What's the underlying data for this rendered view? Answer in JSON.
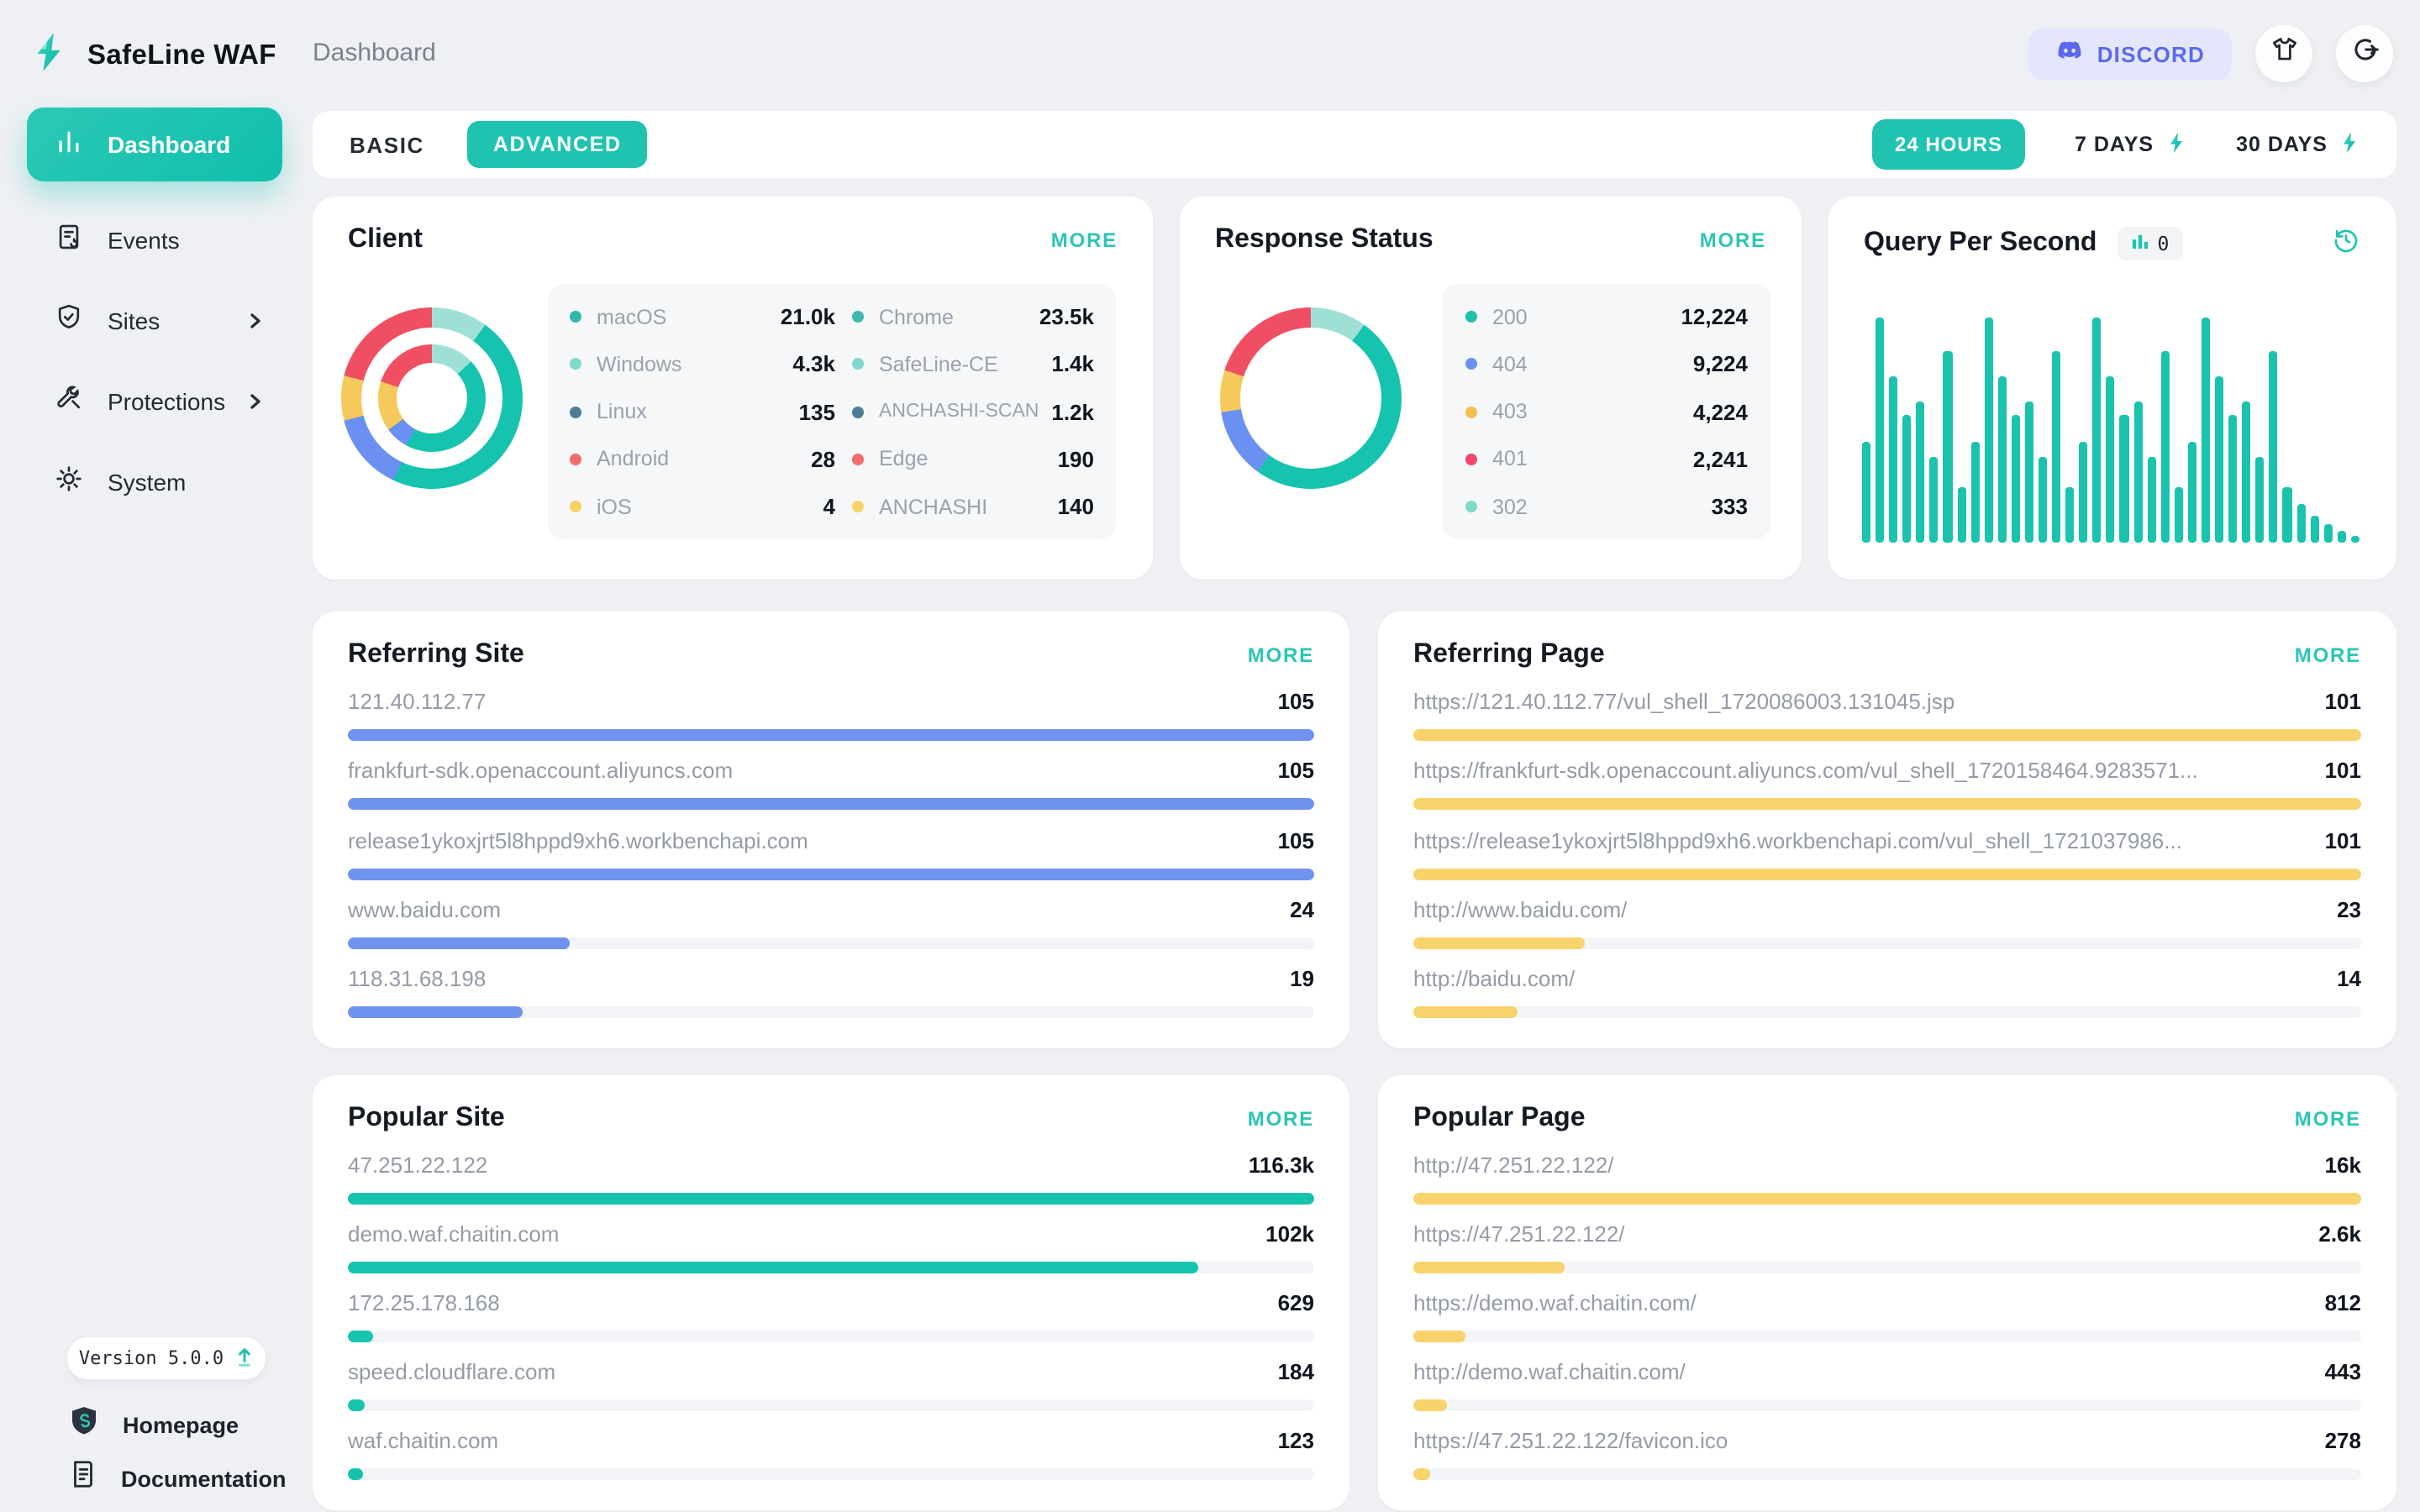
{
  "app": {
    "brand": "SafeLine WAF",
    "breadcrumb": "Dashboard"
  },
  "topbar": {
    "discord_label": "DISCORD",
    "accent_discord": "#5a68f2",
    "icons": [
      "discord-icon",
      "tshirt-theme-icon",
      "logout-icon"
    ]
  },
  "sidebar": {
    "items": [
      {
        "label": "Dashboard",
        "icon": "bar-chart-icon",
        "active": true,
        "has_children": false
      },
      {
        "label": "Events",
        "icon": "events-document-icon",
        "active": false,
        "has_children": false
      },
      {
        "label": "Sites",
        "icon": "shield-check-icon",
        "active": false,
        "has_children": true
      },
      {
        "label": "Protections",
        "icon": "tools-icon",
        "active": false,
        "has_children": true
      },
      {
        "label": "System",
        "icon": "gear-icon",
        "active": false,
        "has_children": false
      }
    ],
    "version": "Version 5.0.0",
    "footer_links": [
      {
        "label": "Homepage",
        "icon": "safeline-shield-icon"
      },
      {
        "label": "Documentation",
        "icon": "document-icon"
      }
    ]
  },
  "toolbar": {
    "modes": [
      {
        "label": "BASIC",
        "active": false
      },
      {
        "label": "ADVANCED",
        "active": true
      }
    ],
    "ranges": [
      {
        "label": "24 HOURS",
        "active": true,
        "pro": false
      },
      {
        "label": "7 DAYS",
        "active": false,
        "pro": true
      },
      {
        "label": "30 DAYS",
        "active": false,
        "pro": true
      }
    ],
    "accent": "#1fc3b0"
  },
  "cards": {
    "client": {
      "title": "Client",
      "more": "MORE",
      "legend_left": [
        {
          "label": "macOS",
          "value": "21.0k",
          "color": "#2fb7ab"
        },
        {
          "label": "Windows",
          "value": "4.3k",
          "color": "#7fd9cd"
        },
        {
          "label": "Linux",
          "value": "135",
          "color": "#4d7d99"
        },
        {
          "label": "Android",
          "value": "28",
          "color": "#f26d6d"
        },
        {
          "label": "iOS",
          "value": "4",
          "color": "#f5d263"
        }
      ],
      "legend_right": [
        {
          "label": "Chrome",
          "value": "23.5k",
          "color": "#3fb9b0"
        },
        {
          "label": "SafeLine-CE",
          "value": "1.4k",
          "color": "#7fd9cd"
        },
        {
          "label": "ANCHASHI-SCAN",
          "value": "1.2k",
          "color": "#4d7d99"
        },
        {
          "label": "Edge",
          "value": "190",
          "color": "#f26d6d"
        },
        {
          "label": "ANCHASHI",
          "value": "140",
          "color": "#f5d263"
        }
      ]
    },
    "response_status": {
      "title": "Response Status",
      "more": "MORE",
      "legend": [
        {
          "label": "200",
          "value": "12,224",
          "color": "#1ec0ab"
        },
        {
          "label": "404",
          "value": "9,224",
          "color": "#6a90f2"
        },
        {
          "label": "403",
          "value": "4,224",
          "color": "#f6bf51"
        },
        {
          "label": "401",
          "value": "2,241",
          "color": "#f2476a"
        },
        {
          "label": "302",
          "value": "333",
          "color": "#7fd9c8"
        }
      ]
    },
    "qps": {
      "title": "Query Per Second",
      "badge_value": "0",
      "history_icon": "history-clock-icon"
    },
    "referring_site": {
      "title": "Referring Site",
      "more": "MORE",
      "bar_color": "#7093f0",
      "items": [
        {
          "label": "121.40.112.77",
          "value": "105",
          "pct": 100
        },
        {
          "label": "frankfurt-sdk.openaccount.aliyuncs.com",
          "value": "105",
          "pct": 100
        },
        {
          "label": "release1ykoxjrt5l8hppd9xh6.workbenchapi.com",
          "value": "105",
          "pct": 100
        },
        {
          "label": "www.baidu.com",
          "value": "24",
          "pct": 23
        },
        {
          "label": "118.31.68.198",
          "value": "19",
          "pct": 18
        }
      ]
    },
    "referring_page": {
      "title": "Referring Page",
      "more": "MORE",
      "bar_color": "#f8d26a",
      "items": [
        {
          "label": "https://121.40.112.77/vul_shell_1720086003.131045.jsp",
          "value": "101",
          "pct": 100
        },
        {
          "label": "https://frankfurt-sdk.openaccount.aliyuncs.com/vul_shell_1720158464.9283571...",
          "value": "101",
          "pct": 100
        },
        {
          "label": "https://release1ykoxjrt5l8hppd9xh6.workbenchapi.com/vul_shell_1721037986...",
          "value": "101",
          "pct": 100
        },
        {
          "label": "http://www.baidu.com/",
          "value": "23",
          "pct": 18
        },
        {
          "label": "http://baidu.com/",
          "value": "14",
          "pct": 11
        }
      ]
    },
    "popular_site": {
      "title": "Popular Site",
      "more": "MORE",
      "bar_color": "#16c3ae",
      "items": [
        {
          "label": "47.251.22.122",
          "value": "116.3k",
          "pct": 100
        },
        {
          "label": "demo.waf.chaitin.com",
          "value": "102k",
          "pct": 88
        },
        {
          "label": "172.25.178.168",
          "value": "629",
          "pct": 2.6
        },
        {
          "label": "speed.cloudflare.com",
          "value": "184",
          "pct": 1.8
        },
        {
          "label": "waf.chaitin.com",
          "value": "123",
          "pct": 1.5
        }
      ]
    },
    "popular_page": {
      "title": "Popular Page",
      "more": "MORE",
      "bar_color": "#f8d26a",
      "items": [
        {
          "label": "http://47.251.22.122/",
          "value": "16k",
          "pct": 100
        },
        {
          "label": "https://47.251.22.122/",
          "value": "2.6k",
          "pct": 16
        },
        {
          "label": "https://demo.waf.chaitin.com/",
          "value": "812",
          "pct": 5.5
        },
        {
          "label": "http://demo.waf.chaitin.com/",
          "value": "443",
          "pct": 3.5
        },
        {
          "label": "https://47.251.22.122/favicon.ico",
          "value": "278",
          "pct": 1.8
        }
      ]
    }
  },
  "chart_data": [
    {
      "type": "pie",
      "title": "Client",
      "legend_position": "right",
      "series": [
        {
          "name": "macOS",
          "value": "21.0k"
        },
        {
          "name": "Windows",
          "value": "4.3k"
        },
        {
          "name": "Linux",
          "value": "135"
        },
        {
          "name": "Android",
          "value": "28"
        },
        {
          "name": "iOS",
          "value": "4"
        },
        {
          "name": "Chrome",
          "value": "23.5k"
        },
        {
          "name": "SafeLine-CE",
          "value": "1.4k"
        },
        {
          "name": "ANCHASHI-SCAN",
          "value": "1.2k"
        },
        {
          "name": "Edge",
          "value": "190"
        },
        {
          "name": "ANCHASHI",
          "value": "140"
        }
      ],
      "rings": [
        {
          "name": "outer",
          "display": [
            {
              "color": "#9fe0d6",
              "pct": 10
            },
            {
              "color": "#16c3ae",
              "pct": 47
            },
            {
              "color": "#6a90f2",
              "pct": 14
            },
            {
              "color": "#f6c95c",
              "pct": 8
            },
            {
              "color": "#f04f63",
              "pct": 21
            }
          ]
        },
        {
          "name": "inner",
          "display": [
            {
              "color": "#9fe0d6",
              "pct": 13
            },
            {
              "color": "#16c3ae",
              "pct": 45
            },
            {
              "color": "#6a90f2",
              "pct": 7
            },
            {
              "color": "#f6c95c",
              "pct": 15
            },
            {
              "color": "#f04f63",
              "pct": 20
            }
          ]
        }
      ]
    },
    {
      "type": "pie",
      "title": "Response Status",
      "legend_position": "right",
      "series": [
        {
          "name": "200",
          "value": 12224
        },
        {
          "name": "404",
          "value": 9224
        },
        {
          "name": "403",
          "value": 4224
        },
        {
          "name": "401",
          "value": 2241
        },
        {
          "name": "302",
          "value": 333
        }
      ],
      "display": [
        {
          "color": "#9fe0d6",
          "pct": 10
        },
        {
          "color": "#16c3ae",
          "pct": 50
        },
        {
          "color": "#6a90f2",
          "pct": 12.5
        },
        {
          "color": "#f6c95c",
          "pct": 7.5
        },
        {
          "color": "#f04f63",
          "pct": 20
        }
      ]
    },
    {
      "type": "bar",
      "title": "Query Per Second",
      "current_value": 0,
      "ylabel": "",
      "xlabel": "",
      "grid": false,
      "unit": "relative-height-%",
      "values": [
        45,
        100,
        74,
        57,
        63,
        38,
        85,
        25,
        45,
        100,
        74,
        57,
        63,
        38,
        85,
        25,
        45,
        100,
        74,
        57,
        63,
        38,
        85,
        25,
        45,
        100,
        74,
        57,
        63,
        38,
        85,
        25,
        17,
        12,
        8,
        5,
        3
      ]
    },
    {
      "type": "bar",
      "title": "Referring Site",
      "orientation": "horizontal",
      "categories": [
        "121.40.112.77",
        "frankfurt-sdk.openaccount.aliyuncs.com",
        "release1ykoxjrt5l8hppd9xh6.workbenchapi.com",
        "www.baidu.com",
        "118.31.68.198"
      ],
      "values": [
        105,
        105,
        105,
        24,
        19
      ]
    },
    {
      "type": "bar",
      "title": "Referring Page",
      "orientation": "horizontal",
      "categories": [
        "https://121.40.112.77/vul_shell_1720086003.131045.jsp",
        "https://frankfurt-sdk.openaccount.aliyuncs.com/vul_shell_1720158464.9283571...",
        "https://release1ykoxjrt5l8hppd9xh6.workbenchapi.com/vul_shell_1721037986...",
        "http://www.baidu.com/",
        "http://baidu.com/"
      ],
      "values": [
        101,
        101,
        101,
        23,
        14
      ]
    },
    {
      "type": "bar",
      "title": "Popular Site",
      "orientation": "horizontal",
      "categories": [
        "47.251.22.122",
        "demo.waf.chaitin.com",
        "172.25.178.168",
        "speed.cloudflare.com",
        "waf.chaitin.com"
      ],
      "values": [
        116300,
        102000,
        629,
        184,
        123
      ]
    },
    {
      "type": "bar",
      "title": "Popular Page",
      "orientation": "horizontal",
      "categories": [
        "http://47.251.22.122/",
        "https://47.251.22.122/",
        "https://demo.waf.chaitin.com/",
        "http://demo.waf.chaitin.com/",
        "https://47.251.22.122/favicon.ico"
      ],
      "values": [
        16000,
        2600,
        812,
        443,
        278
      ]
    }
  ]
}
